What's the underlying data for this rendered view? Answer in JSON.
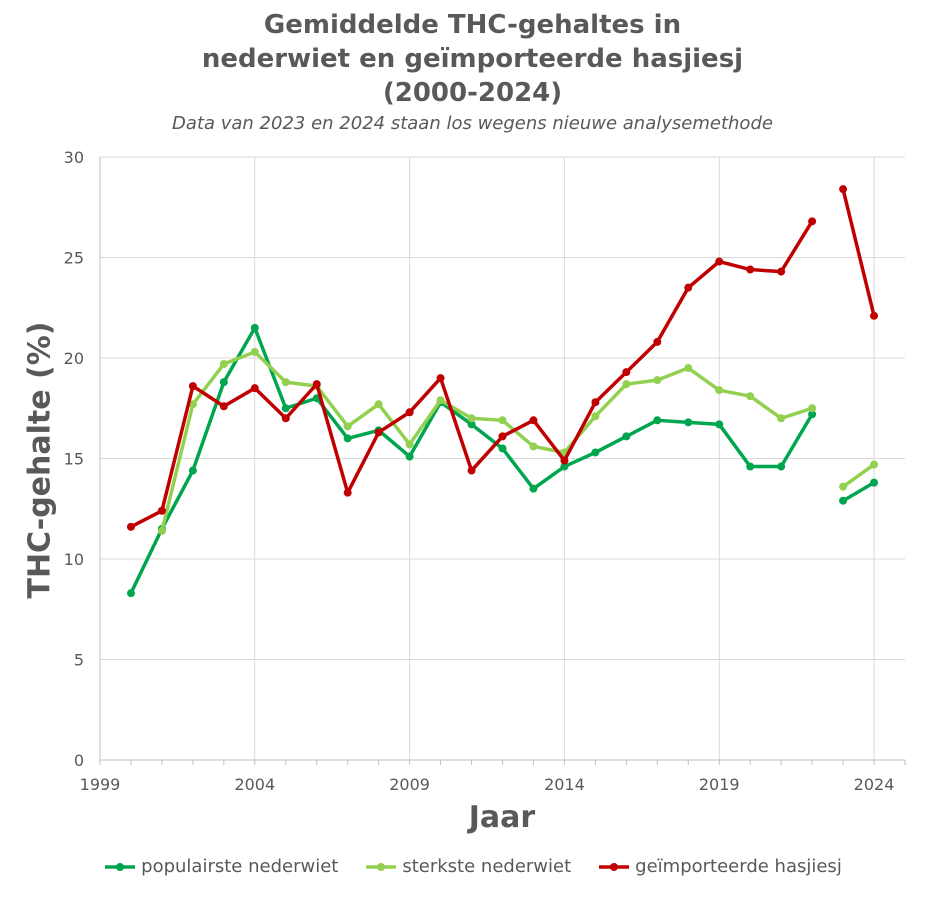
{
  "title_lines": [
    "Gemiddelde THC-gehaltes in",
    "nederwiet en geïmporteerde hasjiesj",
    "(2000-2024)"
  ],
  "subtitle": "Data van 2023 en 2024 staan los wegens nieuwe analysemethode",
  "chart_data": {
    "type": "line",
    "title": "Gemiddelde THC-gehaltes in nederwiet en geïmporteerde hasjiesj (2000-2024)",
    "subtitle": "Data van 2023 en 2024 staan los wegens nieuwe analysemethode",
    "xlabel": "Jaar",
    "ylabel": "THC-gehalte (%)",
    "xlim": [
      1999,
      2025
    ],
    "ylim": [
      0,
      30
    ],
    "xticks": [
      1999,
      2004,
      2009,
      2014,
      2019,
      2024
    ],
    "yticks": [
      0,
      5,
      10,
      15,
      20,
      25,
      30
    ],
    "grid": true,
    "legend_position": "bottom",
    "note": "Series are broken between 2022 and 2023",
    "series": [
      {
        "name": "populairste nederwiet",
        "color": "#00a64f",
        "segments": [
          {
            "x": [
              2000,
              2001,
              2002,
              2003,
              2004,
              2005,
              2006,
              2007,
              2008,
              2009,
              2010,
              2011,
              2012,
              2013,
              2014,
              2015,
              2016,
              2017,
              2018,
              2019,
              2020,
              2021,
              2022
            ],
            "y": [
              8.3,
              11.5,
              14.4,
              18.8,
              21.5,
              17.5,
              18.0,
              16.0,
              16.4,
              15.1,
              17.8,
              16.7,
              15.5,
              13.5,
              14.6,
              15.3,
              16.1,
              16.9,
              16.8,
              16.7,
              14.6,
              14.6,
              17.2
            ]
          },
          {
            "x": [
              2023,
              2024
            ],
            "y": [
              12.9,
              13.8
            ]
          }
        ]
      },
      {
        "name": "sterkste nederwiet",
        "color": "#92d050",
        "segments": [
          {
            "x": [
              2001,
              2002,
              2003,
              2004,
              2005,
              2006,
              2007,
              2008,
              2009,
              2010,
              2011,
              2012,
              2013,
              2014,
              2015,
              2016,
              2017,
              2018,
              2019,
              2020,
              2021,
              2022
            ],
            "y": [
              11.4,
              17.7,
              19.7,
              20.3,
              18.8,
              18.6,
              16.6,
              17.7,
              15.7,
              17.9,
              17.0,
              16.9,
              15.6,
              15.3,
              17.1,
              18.7,
              18.9,
              19.5,
              18.4,
              18.1,
              17.0,
              17.5
            ]
          },
          {
            "x": [
              2023,
              2024
            ],
            "y": [
              13.6,
              14.7
            ]
          }
        ]
      },
      {
        "name": "geïmporteerde hasjiesj",
        "color": "#c00000",
        "segments": [
          {
            "x": [
              2000,
              2001,
              2002,
              2003,
              2004,
              2005,
              2006,
              2007,
              2008,
              2009,
              2010,
              2011,
              2012,
              2013,
              2014,
              2015,
              2016,
              2017,
              2018,
              2019,
              2020,
              2021,
              2022
            ],
            "y": [
              11.6,
              12.4,
              18.6,
              17.6,
              18.5,
              17.0,
              18.7,
              13.3,
              16.3,
              17.3,
              19.0,
              14.4,
              16.1,
              16.9,
              14.9,
              17.8,
              19.3,
              20.8,
              23.5,
              24.8,
              24.4,
              24.3,
              26.8
            ]
          },
          {
            "x": [
              2023,
              2024
            ],
            "y": [
              28.4,
              22.1
            ]
          }
        ]
      }
    ]
  }
}
